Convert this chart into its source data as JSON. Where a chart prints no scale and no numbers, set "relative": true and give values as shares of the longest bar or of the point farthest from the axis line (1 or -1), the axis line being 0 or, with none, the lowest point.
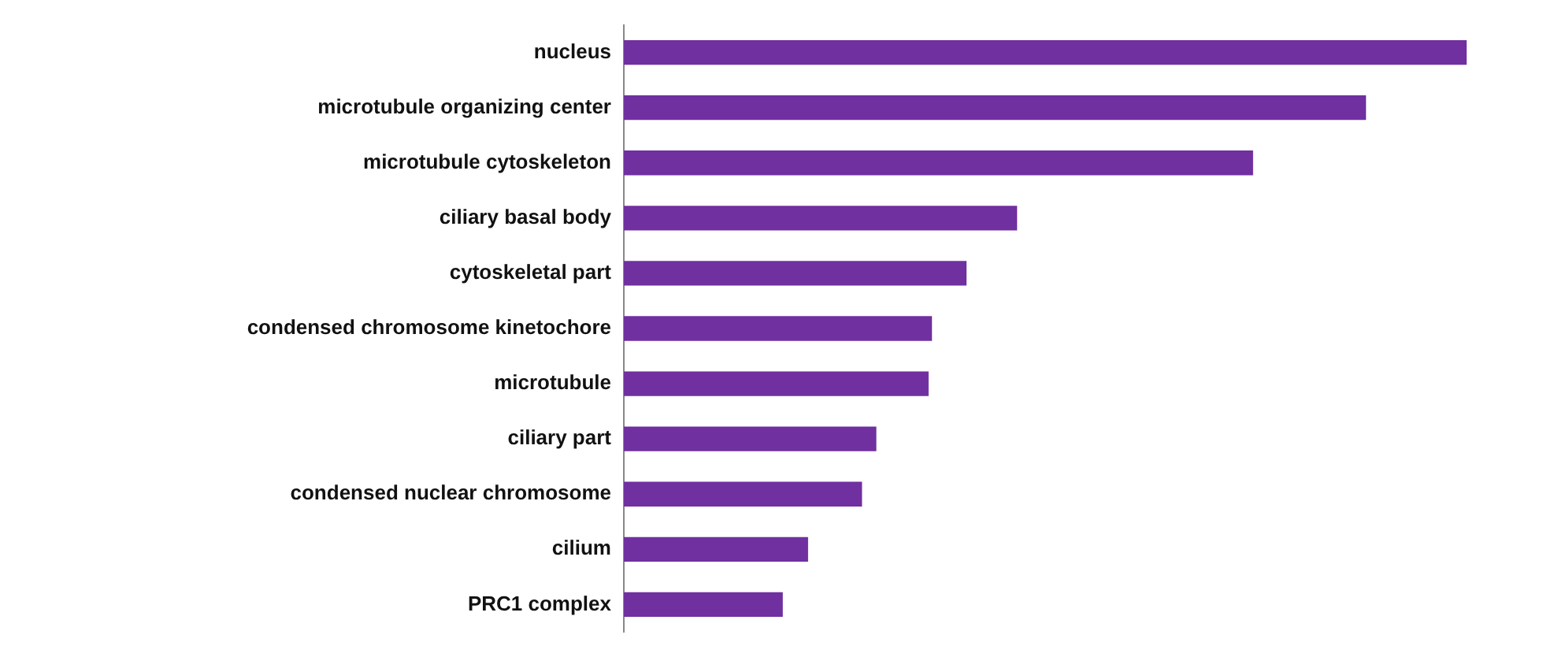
{
  "chart_data": {
    "type": "bar",
    "orientation": "horizontal",
    "relative": true,
    "color": "#7030a0",
    "categories": [
      "nucleus",
      "microtubule organizing center",
      "microtubule cytoskeleton",
      "ciliary basal body",
      "cytoskeletal part",
      "condensed chromosome kinetochore",
      "microtubule",
      "ciliary part",
      "condensed nuclear chromosome",
      "cilium",
      "PRC1 complex"
    ],
    "values": [
      1,
      0.88,
      0.746,
      0.466,
      0.406,
      0.365,
      0.361,
      0.299,
      0.282,
      0.218,
      0.188
    ]
  }
}
